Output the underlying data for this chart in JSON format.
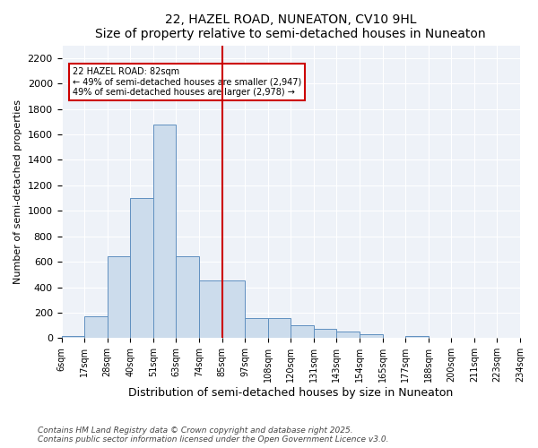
{
  "title": "22, HAZEL ROAD, NUNEATON, CV10 9HL",
  "subtitle": "Size of property relative to semi-detached houses in Nuneaton",
  "xlabel": "Distribution of semi-detached houses by size in Nuneaton",
  "ylabel": "Number of semi-detached properties",
  "tick_labels": [
    "6sqm",
    "17sqm",
    "28sqm",
    "40sqm",
    "51sqm",
    "63sqm",
    "74sqm",
    "85sqm",
    "97sqm",
    "108sqm",
    "120sqm",
    "131sqm",
    "143sqm",
    "154sqm",
    "165sqm",
    "177sqm",
    "188sqm",
    "200sqm",
    "211sqm",
    "223sqm",
    "234sqm"
  ],
  "bar_values": [
    20,
    170,
    640,
    1100,
    1680,
    640,
    450,
    450,
    160,
    160,
    100,
    70,
    50,
    30,
    0,
    20,
    0,
    0,
    0,
    0
  ],
  "bar_color": "#ccdcec",
  "bar_edge_color": "#6090c0",
  "vline_pos": 7,
  "vline_color": "#cc0000",
  "annotation_text": "22 HAZEL ROAD: 82sqm\n← 49% of semi-detached houses are smaller (2,947)\n49% of semi-detached houses are larger (2,978) →",
  "annotation_box_color": "#ffffff",
  "annotation_box_edge": "#cc0000",
  "ylim": [
    0,
    2300
  ],
  "yticks": [
    0,
    200,
    400,
    600,
    800,
    1000,
    1200,
    1400,
    1600,
    1800,
    2000,
    2200
  ],
  "background_color": "#eef2f8",
  "footer_line1": "Contains HM Land Registry data © Crown copyright and database right 2025.",
  "footer_line2": "Contains public sector information licensed under the Open Government Licence v3.0."
}
